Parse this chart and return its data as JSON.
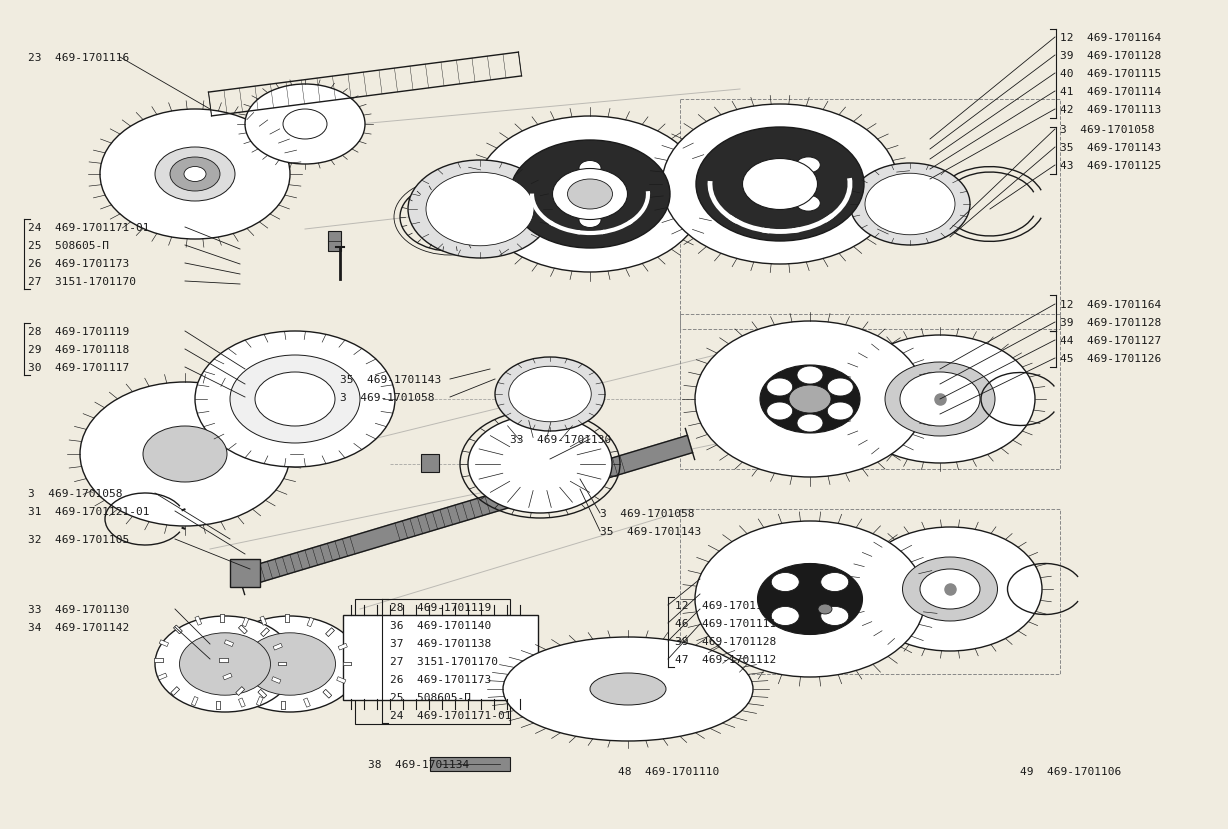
{
  "bg_color": "#f0ece0",
  "line_color": "#1a1a1a",
  "fig_w": 12.08,
  "fig_h": 8.1,
  "dpi": 100,
  "labels_top_right": [
    [
      "12",
      "469-1701164",
      1050,
      28
    ],
    [
      "39",
      "469-1701128",
      1050,
      46
    ],
    [
      "40",
      "469-1701115",
      1050,
      64
    ],
    [
      "41",
      "469-1701114",
      1050,
      82
    ],
    [
      "42",
      "469-1701113",
      1050,
      100
    ],
    [
      "3",
      "469-1701058",
      1050,
      120
    ],
    [
      "35",
      "469-1701143",
      1050,
      138
    ],
    [
      "43",
      "469-1701125",
      1050,
      156
    ]
  ],
  "labels_mid_right": [
    [
      "12",
      "469-1701164",
      1050,
      295
    ],
    [
      "39",
      "469-1701128",
      1050,
      313
    ],
    [
      "44",
      "469-1701127",
      1050,
      331
    ],
    [
      "45",
      "469-1701126",
      1050,
      349
    ]
  ],
  "labels_left": [
    [
      "23",
      "469-1701116",
      18,
      48
    ],
    [
      "24",
      "469-1701171-01",
      18,
      218
    ],
    [
      "25",
      "508605-П",
      18,
      236
    ],
    [
      "26",
      "469-1701173",
      18,
      254
    ],
    [
      "27",
      "3151-1701170",
      18,
      272
    ],
    [
      "28",
      "469-1701119",
      18,
      322
    ],
    [
      "29",
      "469-1701118",
      18,
      340
    ],
    [
      "30",
      "469-1701117",
      18,
      358
    ],
    [
      "3",
      "469-1701058",
      18,
      484
    ],
    [
      "31",
      "469-1701121-01",
      18,
      502
    ],
    [
      "32",
      "469-1701105",
      18,
      530
    ],
    [
      "33",
      "469-1701130",
      18,
      600
    ],
    [
      "34",
      "469-1701142",
      18,
      618
    ]
  ],
  "labels_center_top": [
    [
      "35",
      "469-1701143",
      330,
      370
    ],
    [
      "3",
      "469-1701058",
      330,
      388
    ]
  ],
  "labels_center_mid": [
    [
      "33",
      "469-1701130",
      500,
      430
    ],
    [
      "3",
      "469-1701058",
      590,
      504
    ],
    [
      "35",
      "469-1701143",
      590,
      522
    ]
  ],
  "labels_bottom_center": [
    [
      "28",
      "469-1701119",
      380,
      598
    ],
    [
      "36",
      "469-1701140",
      380,
      616
    ],
    [
      "37",
      "469-1701138",
      380,
      634
    ],
    [
      "27",
      "3151-1701170",
      380,
      652
    ],
    [
      "26",
      "469-1701173",
      380,
      670
    ],
    [
      "25",
      "508605-П",
      380,
      688
    ],
    [
      "24",
      "469-1701171-01",
      380,
      706
    ],
    [
      "38",
      "469-1701134",
      358,
      755
    ]
  ],
  "labels_bottom_right": [
    [
      "12",
      "469-1701164",
      665,
      596
    ],
    [
      "46",
      "469-1701111",
      665,
      614
    ],
    [
      "39",
      "469-1701128",
      665,
      632
    ],
    [
      "47",
      "469-1701112",
      665,
      650
    ]
  ],
  "labels_bottom_far": [
    [
      "48",
      "469-1701110",
      608,
      762
    ],
    [
      "49",
      "469-1701106",
      1010,
      762
    ]
  ]
}
